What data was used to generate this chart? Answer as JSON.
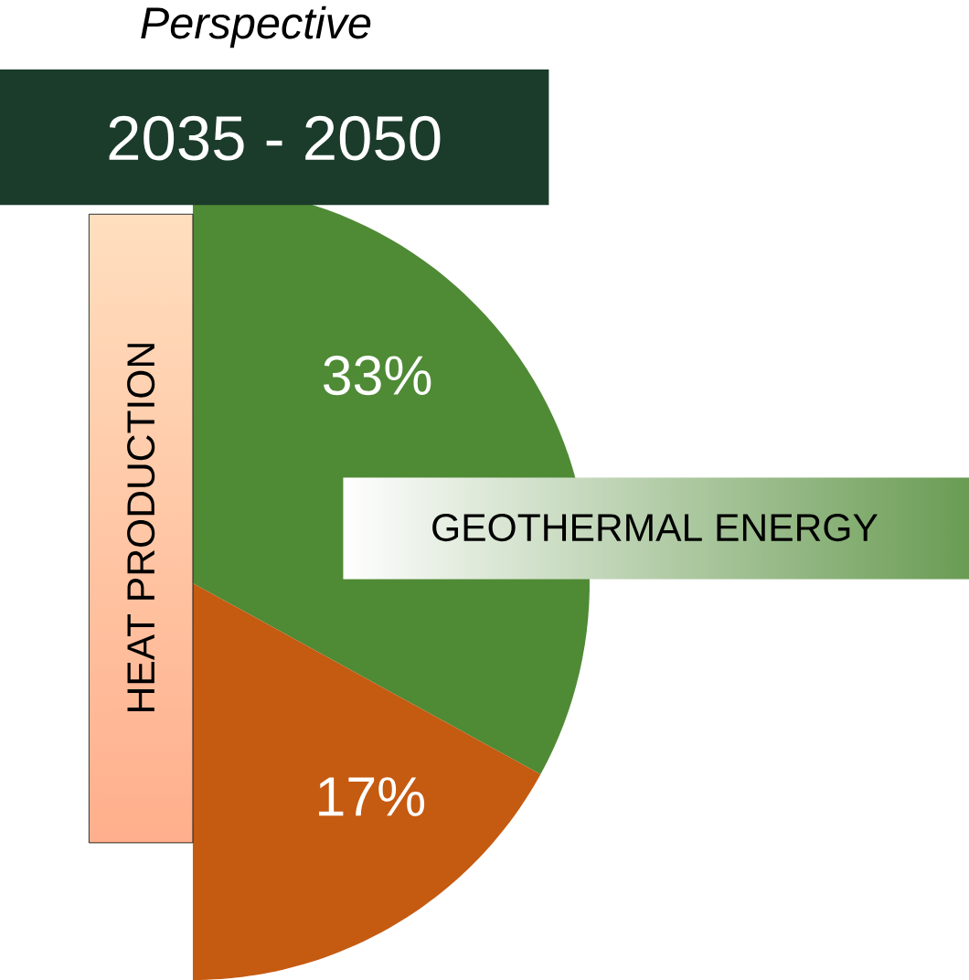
{
  "chart_data": {
    "type": "pie",
    "title": "Perspective",
    "subtitle": "2035 - 2050",
    "categories": [
      null,
      null
    ],
    "values": [
      33,
      17
    ],
    "colors": [
      "#4f8a35",
      "#c55a11"
    ],
    "value_labels": [
      "33%",
      "17%"
    ],
    "annotations": [
      "GEOTHERMAL ENERGY",
      "HEAT PRODUCTION"
    ]
  }
}
